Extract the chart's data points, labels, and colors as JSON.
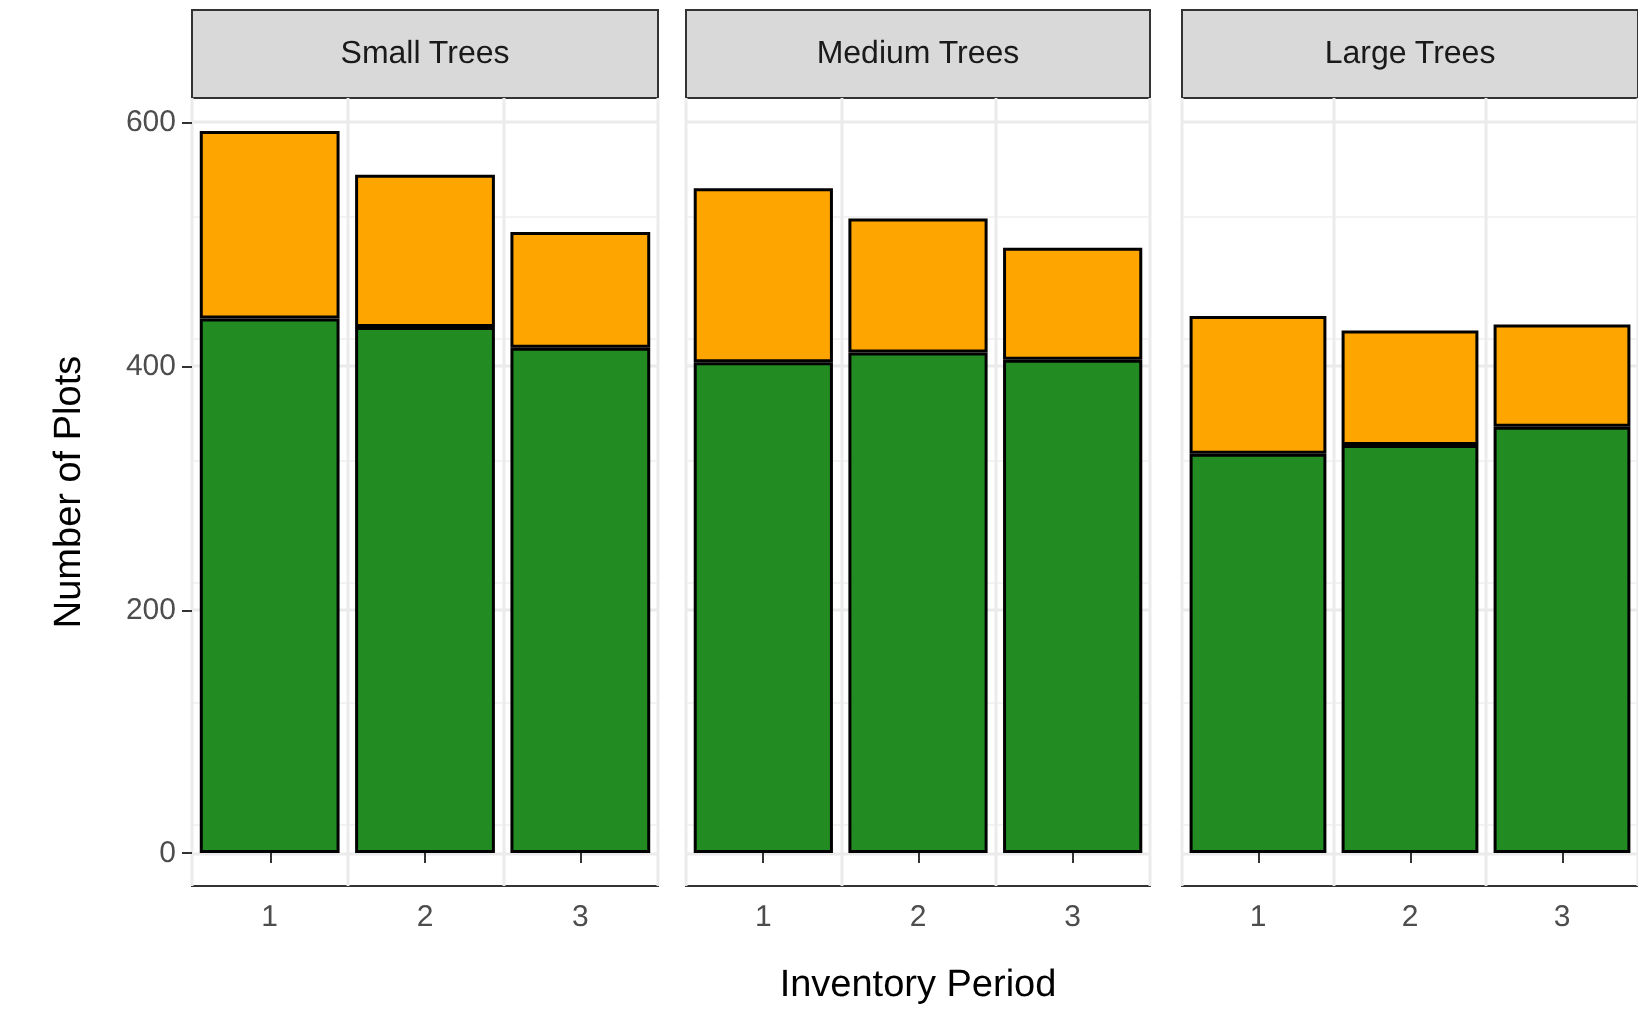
{
  "chart_data": [
    {
      "type": "bar",
      "title": "Small Trees",
      "ylabel": "Number of Plots",
      "categories": [
        "1",
        "2",
        "3"
      ],
      "stacked": true,
      "grid": true,
      "ylim": [
        -27,
        620
      ],
      "yticks": [
        0,
        200,
        400,
        600
      ],
      "series": [
        {
          "color": "#228b22",
          "values": [
            439,
            432,
            415
          ]
        },
        {
          "color": "#ffa500",
          "values": [
            154,
            125,
            95
          ]
        }
      ]
    },
    {
      "type": "bar",
      "title": "Medium Trees",
      "xlabel": "Inventory Period",
      "categories": [
        "1",
        "2",
        "3"
      ],
      "stacked": true,
      "grid": true,
      "ylim": [
        -27,
        620
      ],
      "yticks": [
        0,
        200,
        400,
        600
      ],
      "tick_labels": "x",
      "series": [
        {
          "color": "#228b22",
          "values": [
            403,
            411,
            405
          ]
        },
        {
          "color": "#ffa500",
          "values": [
            143,
            110,
            92
          ]
        }
      ]
    },
    {
      "type": "bar",
      "title": "Large Trees",
      "categories": [
        "1",
        "2",
        "3"
      ],
      "stacked": true,
      "grid": true,
      "ylim": [
        -27,
        620
      ],
      "yticks": [
        0,
        200,
        400,
        600
      ],
      "tick_labels": "x",
      "series": [
        {
          "color": "#228b22",
          "values": [
            328,
            335,
            350
          ]
        },
        {
          "color": "#ffa500",
          "values": [
            113,
            94,
            84
          ]
        }
      ]
    }
  ]
}
